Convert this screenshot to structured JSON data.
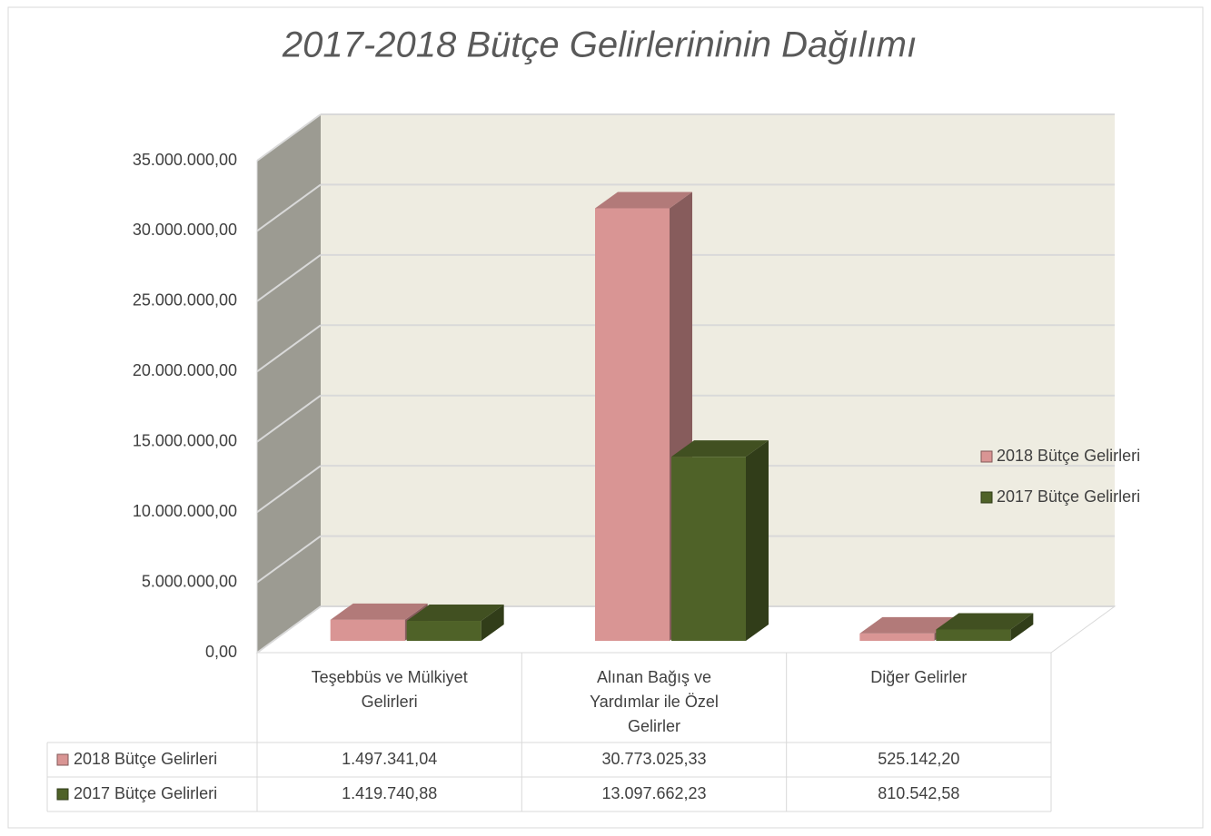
{
  "chart_data": {
    "type": "bar3d",
    "title": "2017-2018 Bütçe Gelirlerininin Dağılımı",
    "categories": [
      "Teşebbüs ve Mülkiyet Gelirleri",
      "Alınan Bağış ve Yardımlar ile Özel Gelirler",
      "Diğer Gelirler"
    ],
    "series": [
      {
        "name": "2018 Bütçe Gelirleri",
        "color": "#d99594",
        "values": [
          1497341.04,
          30773025.33,
          525142.2
        ],
        "value_labels": [
          "1.497.341,04",
          "30.773.025,33",
          "525.142,20"
        ]
      },
      {
        "name": "2017 Bütçe Gelirleri",
        "color": "#4f6228",
        "values": [
          1419740.88,
          13097662.23,
          810542.58
        ],
        "value_labels": [
          "1.419.740,88",
          "13.097.662,23",
          "810.542,58"
        ]
      }
    ],
    "ylim": [
      0,
      35000000
    ],
    "yticks": [
      {
        "value": 0,
        "label": "0,00"
      },
      {
        "value": 5000000,
        "label": "5.000.000,00"
      },
      {
        "value": 10000000,
        "label": "10.000.000,00"
      },
      {
        "value": 15000000,
        "label": "15.000.000,00"
      },
      {
        "value": 20000000,
        "label": "20.000.000,00"
      },
      {
        "value": 25000000,
        "label": "25.000.000,00"
      },
      {
        "value": 30000000,
        "label": "30.000.000,00"
      },
      {
        "value": 35000000,
        "label": "35.000.000,00"
      }
    ],
    "grid": true,
    "legend": "right",
    "data_table": true
  }
}
